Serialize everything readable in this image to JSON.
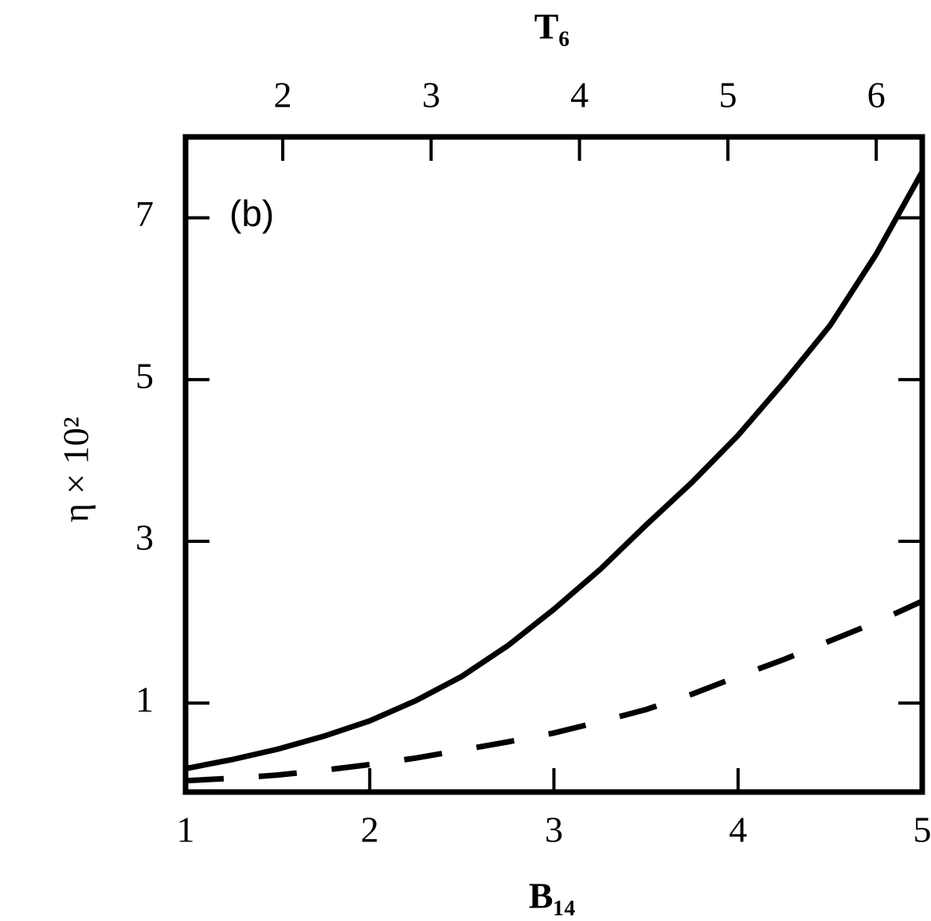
{
  "chart_data": {
    "type": "line",
    "xlabel": "B₁₄",
    "x2label": "T₆",
    "ylabel": "η × 10²",
    "annotation": "(b)",
    "x": [
      1,
      1.25,
      1.5,
      1.75,
      2,
      2.25,
      2.5,
      2.75,
      3,
      3.25,
      3.5,
      3.75,
      4,
      4.25,
      4.5,
      4.75,
      5
    ],
    "series": [
      {
        "color": "#000000",
        "dash": "solid",
        "values": [
          0.19,
          0.3,
          0.43,
          0.59,
          0.78,
          1.03,
          1.33,
          1.71,
          2.16,
          2.65,
          3.2,
          3.73,
          4.31,
          4.97,
          5.67,
          6.55,
          7.57
        ]
      },
      {
        "color": "#000000",
        "dash": "dashed",
        "values": [
          0.04,
          0.07,
          0.11,
          0.17,
          0.24,
          0.32,
          0.42,
          0.52,
          0.63,
          0.77,
          0.92,
          1.11,
          1.33,
          1.54,
          1.77,
          2.0,
          2.26
        ]
      }
    ],
    "xlim": [
      1,
      5
    ],
    "xticks": [
      1,
      2,
      3,
      4,
      5
    ],
    "x2lim": [
      1.345,
      6.31
    ],
    "x2ticks": [
      2,
      3,
      4,
      5,
      6
    ],
    "ylim": [
      -0.1,
      8.0
    ],
    "yticks": [
      1,
      3,
      5,
      7
    ],
    "grid": false
  }
}
